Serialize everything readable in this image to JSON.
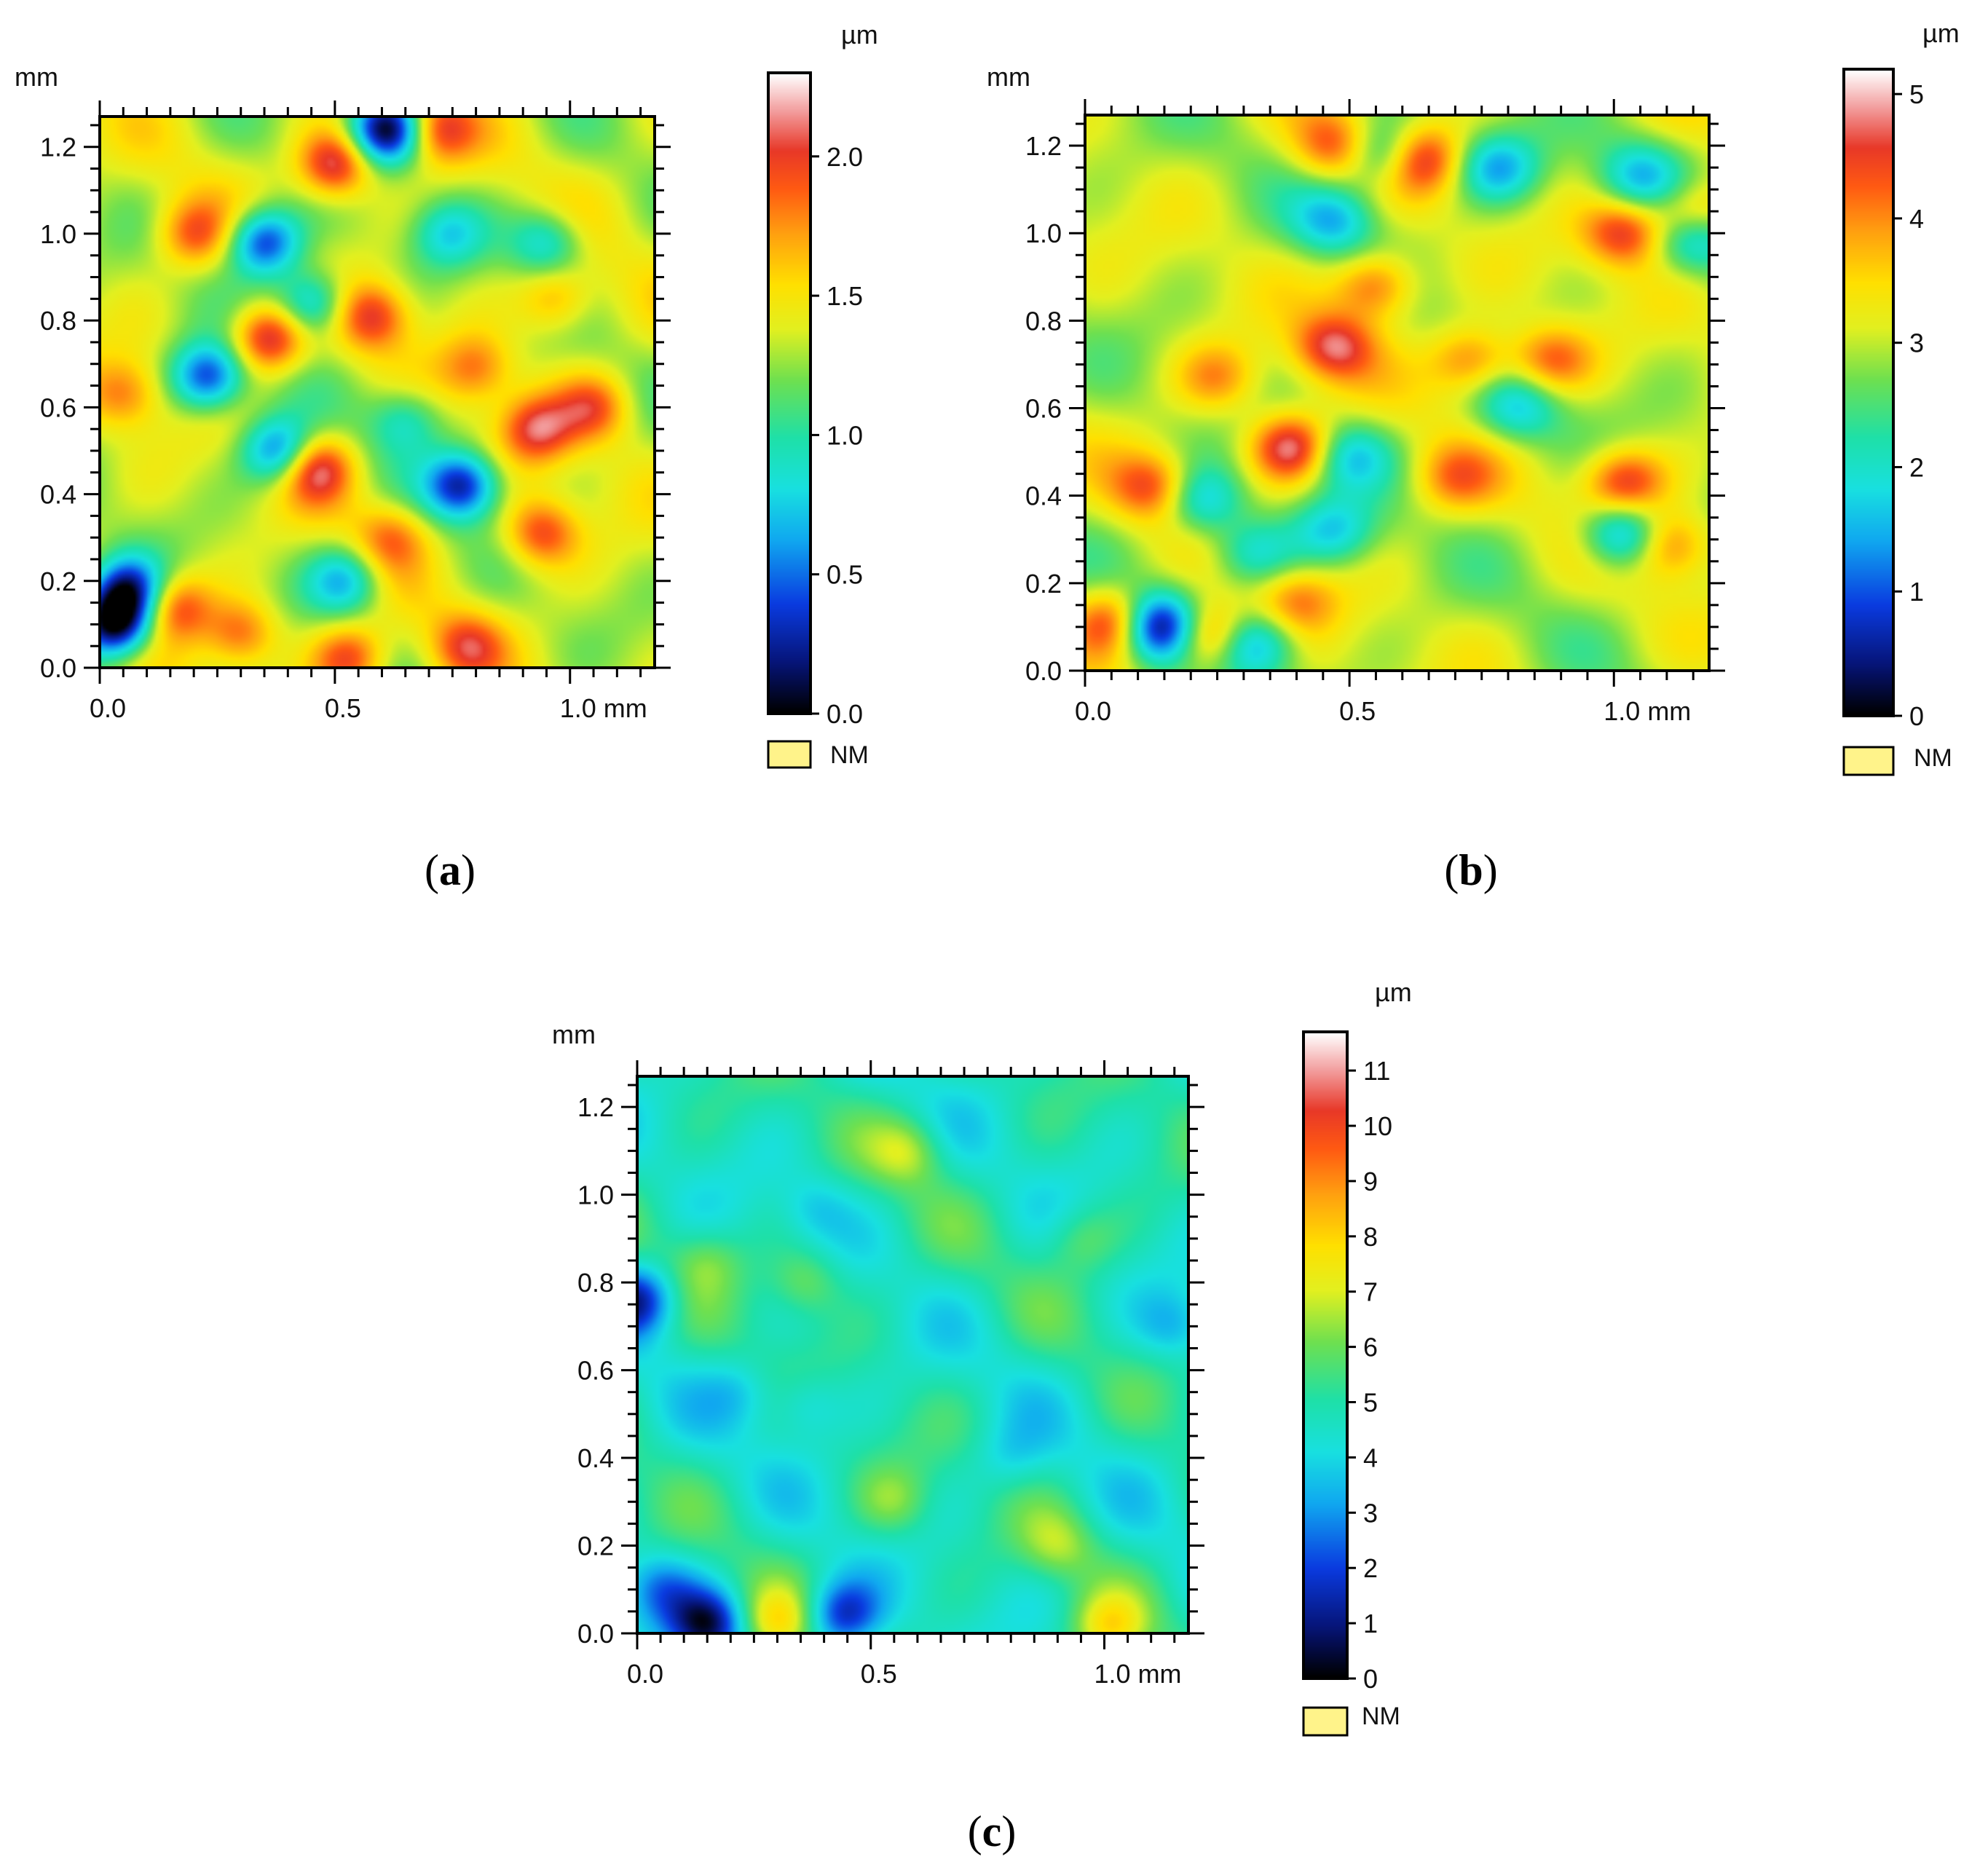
{
  "chart_data": [
    {
      "type": "heatmap",
      "panel": "(a)",
      "panel_letter": "a",
      "x_unit": "mm",
      "y_unit": "mm",
      "xlim": [
        0,
        1.18
      ],
      "ylim": [
        0,
        1.27
      ],
      "x_ticks": [
        "0.0",
        "0.5",
        "1.0 mm"
      ],
      "x_tick_values": [
        0,
        0.5,
        1.0
      ],
      "y_ticks": [
        "0.0",
        "0.2",
        "0.4",
        "0.6",
        "0.8",
        "1.0",
        "1.2"
      ],
      "y_tick_values": [
        0,
        0.2,
        0.4,
        0.6,
        0.8,
        1.0,
        1.2
      ],
      "colorbar": {
        "unit": "µm",
        "range": [
          0,
          2.3
        ],
        "ticks": [
          "0.0",
          "0.5",
          "1.0",
          "1.5",
          "2.0"
        ],
        "tick_values": [
          0,
          0.5,
          1.0,
          1.5,
          2.0
        ]
      },
      "legend_nm": "NM",
      "base_height": 1.35,
      "features": [
        {
          "x": 0.03,
          "y": 0.1,
          "h": 0.0
        },
        {
          "x": 0.06,
          "y": 0.18,
          "h": 0.3
        },
        {
          "x": 0.36,
          "y": 0.76,
          "h": 2.2
        },
        {
          "x": 0.5,
          "y": 1.16,
          "h": 2.2
        },
        {
          "x": 0.23,
          "y": 0.67,
          "h": 0.35
        },
        {
          "x": 0.35,
          "y": 0.98,
          "h": 0.3
        },
        {
          "x": 0.61,
          "y": 1.24,
          "h": 0.05
        },
        {
          "x": 0.77,
          "y": 0.42,
          "h": 0.3
        },
        {
          "x": 0.38,
          "y": 0.5,
          "h": 0.45
        },
        {
          "x": 0.46,
          "y": 0.46,
          "h": 2.1
        },
        {
          "x": 0.58,
          "y": 0.81,
          "h": 2.0
        },
        {
          "x": 0.93,
          "y": 0.55,
          "h": 2.0
        },
        {
          "x": 0.94,
          "y": 0.31,
          "h": 2.0
        },
        {
          "x": 0.16,
          "y": 0.14,
          "h": 2.0
        },
        {
          "x": 0.72,
          "y": 1.24,
          "h": 2.0
        },
        {
          "x": 0.2,
          "y": 1.0,
          "h": 1.9
        },
        {
          "x": 1.05,
          "y": 0.6,
          "h": 1.9
        },
        {
          "x": 0.05,
          "y": 0.63,
          "h": 1.8
        },
        {
          "x": 0.8,
          "y": 0.69,
          "h": 1.8
        },
        {
          "x": 0.97,
          "y": 0.85,
          "h": 1.8
        },
        {
          "x": 0.62,
          "y": 0.3,
          "h": 1.8
        },
        {
          "x": 0.74,
          "y": 1.0,
          "h": 0.85
        },
        {
          "x": 0.95,
          "y": 0.98,
          "h": 0.8
        },
        {
          "x": 0.45,
          "y": 0.84,
          "h": 0.6
        },
        {
          "x": 0.52,
          "y": 0.2,
          "h": 0.7
        },
        {
          "x": 0.65,
          "y": 0.57,
          "h": 0.9
        },
        {
          "x": 0.3,
          "y": 0.08,
          "h": 1.9
        },
        {
          "x": 0.53,
          "y": 0.02,
          "h": 2.0
        },
        {
          "x": 0.78,
          "y": 0.05,
          "h": 1.9
        }
      ]
    },
    {
      "type": "heatmap",
      "panel": "(b)",
      "panel_letter": "b",
      "x_unit": "mm",
      "y_unit": "mm",
      "xlim": [
        0,
        1.18
      ],
      "ylim": [
        0,
        1.27
      ],
      "x_ticks": [
        "0.0",
        "0.5",
        "1.0 mm"
      ],
      "x_tick_values": [
        0,
        0.5,
        1.0
      ],
      "y_ticks": [
        "0.0",
        "0.2",
        "0.4",
        "0.6",
        "0.8",
        "1.0",
        "1.2"
      ],
      "y_tick_values": [
        0,
        0.2,
        0.4,
        0.6,
        0.8,
        1.0,
        1.2
      ],
      "colorbar": {
        "unit": "µm",
        "range": [
          0,
          5.2
        ],
        "ticks": [
          "0",
          "1",
          "2",
          "3",
          "4",
          "5"
        ],
        "tick_values": [
          0,
          1,
          2,
          3,
          4,
          5
        ]
      },
      "legend_nm": "NM",
      "base_height": 3.0,
      "features": [
        {
          "x": 0.14,
          "y": 0.1,
          "h": 0.0
        },
        {
          "x": 0.32,
          "y": 0.06,
          "h": 1.3
        },
        {
          "x": 0.06,
          "y": 0.11,
          "h": 4.8
        },
        {
          "x": 0.23,
          "y": 0.08,
          "h": 4.9
        },
        {
          "x": 0.39,
          "y": 0.51,
          "h": 4.9
        },
        {
          "x": 0.63,
          "y": 1.17,
          "h": 4.9
        },
        {
          "x": 1.02,
          "y": 0.43,
          "h": 4.7
        },
        {
          "x": 1.02,
          "y": 1.0,
          "h": 4.6
        },
        {
          "x": 0.47,
          "y": 0.74,
          "h": 4.6
        },
        {
          "x": 0.55,
          "y": 0.88,
          "h": 4.5
        },
        {
          "x": 1.15,
          "y": 1.04,
          "h": 4.5
        },
        {
          "x": 1.1,
          "y": 0.29,
          "h": 4.4
        },
        {
          "x": 0.13,
          "y": 0.42,
          "h": 4.4
        },
        {
          "x": 0.47,
          "y": 1.2,
          "h": 4.3
        },
        {
          "x": 0.73,
          "y": 0.71,
          "h": 4.3
        },
        {
          "x": 0.88,
          "y": 0.71,
          "h": 4.3
        },
        {
          "x": 1.02,
          "y": 0.31,
          "h": 1.1
        },
        {
          "x": 0.57,
          "y": 1.18,
          "h": 1.3
        },
        {
          "x": 0.78,
          "y": 1.15,
          "h": 1.5
        },
        {
          "x": 0.47,
          "y": 1.03,
          "h": 1.7
        },
        {
          "x": 0.22,
          "y": 0.39,
          "h": 1.6
        },
        {
          "x": 0.5,
          "y": 0.49,
          "h": 1.8
        },
        {
          "x": 1.15,
          "y": 0.99,
          "h": 1.4
        },
        {
          "x": 1.05,
          "y": 1.13,
          "h": 1.7
        },
        {
          "x": 0.82,
          "y": 0.6,
          "h": 1.8
        },
        {
          "x": 0.47,
          "y": 0.32,
          "h": 1.8
        },
        {
          "x": 0.32,
          "y": 0.27,
          "h": 1.9
        },
        {
          "x": 0.7,
          "y": 0.44,
          "h": 4.0
        },
        {
          "x": 0.25,
          "y": 0.67,
          "h": 4.0
        },
        {
          "x": 0.4,
          "y": 0.16,
          "h": 4.0
        }
      ]
    },
    {
      "type": "heatmap",
      "panel": "(c)",
      "panel_letter": "c",
      "x_unit": "mm",
      "y_unit": "mm",
      "xlim": [
        0,
        1.18
      ],
      "ylim": [
        0,
        1.27
      ],
      "x_ticks": [
        "0.0",
        "0.5",
        "1.0 mm"
      ],
      "x_tick_values": [
        0,
        0.5,
        1.0
      ],
      "y_ticks": [
        "0.0",
        "0.2",
        "0.4",
        "0.6",
        "0.8",
        "1.0",
        "1.2"
      ],
      "y_tick_values": [
        0,
        0.2,
        0.4,
        0.6,
        0.8,
        1.0,
        1.2
      ],
      "colorbar": {
        "unit": "µm",
        "range": [
          0,
          11.7
        ],
        "ticks": [
          "0",
          "1",
          "2",
          "3",
          "4",
          "5",
          "6",
          "7",
          "8",
          "9",
          "10",
          "11"
        ],
        "tick_values": [
          0,
          1,
          2,
          3,
          4,
          5,
          6,
          7,
          8,
          9,
          10,
          11
        ]
      },
      "legend_nm": "NM",
      "base_height": 4.8,
      "features": [
        {
          "x": 0.0,
          "y": 0.76,
          "h": 1.3
        },
        {
          "x": 0.15,
          "y": 0.02,
          "h": 0.9
        },
        {
          "x": 0.05,
          "y": 0.1,
          "h": 3.0
        },
        {
          "x": 0.44,
          "y": 0.04,
          "h": 1.6
        },
        {
          "x": 0.3,
          "y": 0.02,
          "h": 7.2
        },
        {
          "x": 1.01,
          "y": 0.01,
          "h": 7.3
        },
        {
          "x": 0.36,
          "y": 0.52,
          "h": 3.6
        },
        {
          "x": 0.38,
          "y": 0.97,
          "h": 3.8
        },
        {
          "x": 1.15,
          "y": 0.7,
          "h": 3.5
        },
        {
          "x": 0.8,
          "y": 0.4,
          "h": 3.9
        },
        {
          "x": 0.58,
          "y": 1.1,
          "h": 6.5
        },
        {
          "x": 0.36,
          "y": 0.8,
          "h": 6.3
        },
        {
          "x": 0.15,
          "y": 0.85,
          "h": 6.0
        },
        {
          "x": 0.95,
          "y": 0.9,
          "h": 6.0
        },
        {
          "x": 0.9,
          "y": 0.2,
          "h": 6.2
        },
        {
          "x": 0.55,
          "y": 0.3,
          "h": 6.0
        },
        {
          "x": 0.22,
          "y": 0.55,
          "h": 3.9
        }
      ]
    }
  ],
  "colormap": [
    {
      "v": 0.0,
      "color": "#000000"
    },
    {
      "v": 0.08,
      "color": "#06157a"
    },
    {
      "v": 0.17,
      "color": "#0a3be0"
    },
    {
      "v": 0.27,
      "color": "#10a8f0"
    },
    {
      "v": 0.35,
      "color": "#18e0e0"
    },
    {
      "v": 0.43,
      "color": "#1ee0a8"
    },
    {
      "v": 0.52,
      "color": "#6ee050"
    },
    {
      "v": 0.6,
      "color": "#e2f020"
    },
    {
      "v": 0.67,
      "color": "#ffe000"
    },
    {
      "v": 0.75,
      "color": "#ffa010"
    },
    {
      "v": 0.82,
      "color": "#ff5a12"
    },
    {
      "v": 0.88,
      "color": "#e83828"
    },
    {
      "v": 0.94,
      "color": "#f29a9a"
    },
    {
      "v": 1.0,
      "color": "#ffffff"
    }
  ],
  "nm_color": "#fff38a"
}
